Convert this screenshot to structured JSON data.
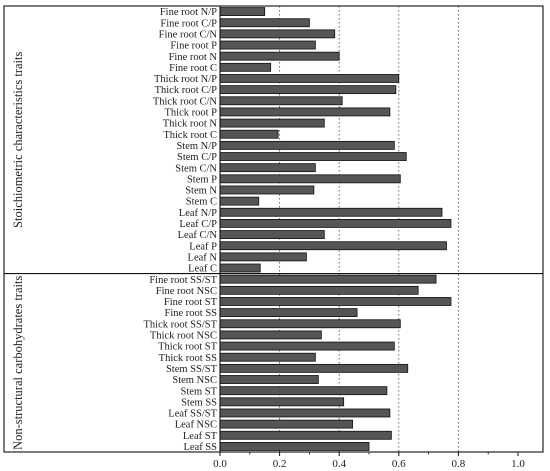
{
  "chart_data": {
    "type": "bar",
    "orientation": "horizontal",
    "xlim": [
      0.0,
      1.0
    ],
    "x_ticks": [
      "0.0",
      "0.2",
      "0.4",
      "0.6",
      "0.8",
      "1.0"
    ],
    "grid": "vertical dotted lines at 0.2, 0.4, 0.6, 0.8",
    "bar_color": "#555555",
    "groups": [
      {
        "name": "Stoichiometric characteristics traits",
        "categories": [
          "Fine root N/P",
          "Fine root C/P",
          "Fine root C/N",
          "Fine root P",
          "Fine root N",
          "Fine root C",
          "Thick root N/P",
          "Thick root C/P",
          "Thick root C/N",
          "Thick root P",
          "Thick root N",
          "Thick root C",
          "Stem N/P",
          "Stem C/P",
          "Stem C/N",
          "Stem P",
          "Stem N",
          "Stem C",
          "Leaf N/P",
          "Leaf C/P",
          "Leaf C/N",
          "Leaf P",
          "Leaf N",
          "Leaf C"
        ],
        "values": [
          0.15,
          0.3,
          0.385,
          0.32,
          0.4,
          0.17,
          0.6,
          0.59,
          0.41,
          0.57,
          0.35,
          0.195,
          0.585,
          0.625,
          0.32,
          0.605,
          0.315,
          0.13,
          0.745,
          0.775,
          0.35,
          0.76,
          0.29,
          0.135
        ]
      },
      {
        "name": "Non-structural carbohydrates traits",
        "categories": [
          "Fine root SS/ST",
          "Fine root NSC",
          "Fine root ST",
          "Fine root SS",
          "Thick root SS/ST",
          "Thick root NSC",
          "Thick root ST",
          "Thick root SS",
          "Stem SS/ST",
          "Stem NSC",
          "Stem ST",
          "Stem SS",
          "Leaf SS/ST",
          "Leaf NSC",
          "Leaf ST",
          "Leaf SS"
        ],
        "values": [
          0.725,
          0.665,
          0.775,
          0.46,
          0.605,
          0.34,
          0.585,
          0.32,
          0.63,
          0.33,
          0.56,
          0.415,
          0.57,
          0.445,
          0.575,
          0.5
        ]
      }
    ]
  }
}
